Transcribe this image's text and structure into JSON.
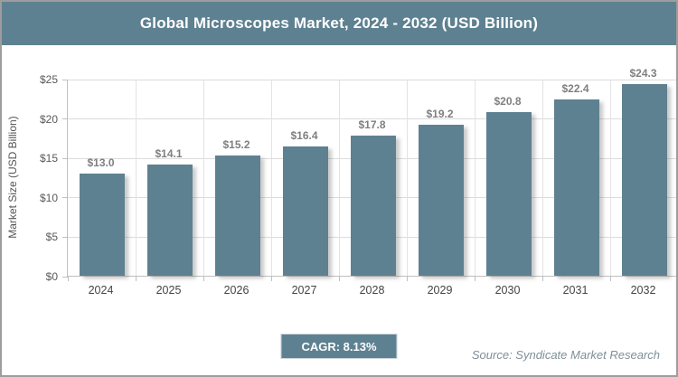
{
  "header": {
    "title": "Global Microscopes Market, 2024 - 2032 (USD Billion)"
  },
  "chart_data": {
    "type": "bar",
    "title": "Global Microscopes Market, 2024 - 2032 (USD Billion)",
    "categories": [
      "2024",
      "2025",
      "2026",
      "2027",
      "2028",
      "2029",
      "2030",
      "2031",
      "2032"
    ],
    "values": [
      13.0,
      14.1,
      15.2,
      16.4,
      17.8,
      19.2,
      20.8,
      22.4,
      24.3
    ],
    "value_labels": [
      "$13.0",
      "$14.1",
      "$15.2",
      "$16.4",
      "$17.8",
      "$19.2",
      "$20.8",
      "$22.4",
      "$24.3"
    ],
    "xlabel": "",
    "ylabel": "Market Size (USD Billion)",
    "ylim": [
      0,
      25
    ],
    "yticks": [
      {
        "value": 0,
        "label": "$0"
      },
      {
        "value": 5,
        "label": "$5"
      },
      {
        "value": 10,
        "label": "$10"
      },
      {
        "value": 15,
        "label": "$15"
      },
      {
        "value": 20,
        "label": "$20"
      },
      {
        "value": 25,
        "label": "$25"
      }
    ],
    "grid": "horizontal and vertical, light gray",
    "legend": "none",
    "bar_color": "#5e8191"
  },
  "footer": {
    "cagr_label": "CAGR: 8.13%",
    "source_label": "Source: Syndicate Market Research"
  },
  "colors": {
    "accent": "#5e8191",
    "frame_border": "#9d9d9d",
    "gridline": "#dcdcdc",
    "axis_line": "#c0c0c0",
    "data_label": "#7f7f7f",
    "tick_label": "#595959",
    "source_text": "#7e8f99"
  }
}
